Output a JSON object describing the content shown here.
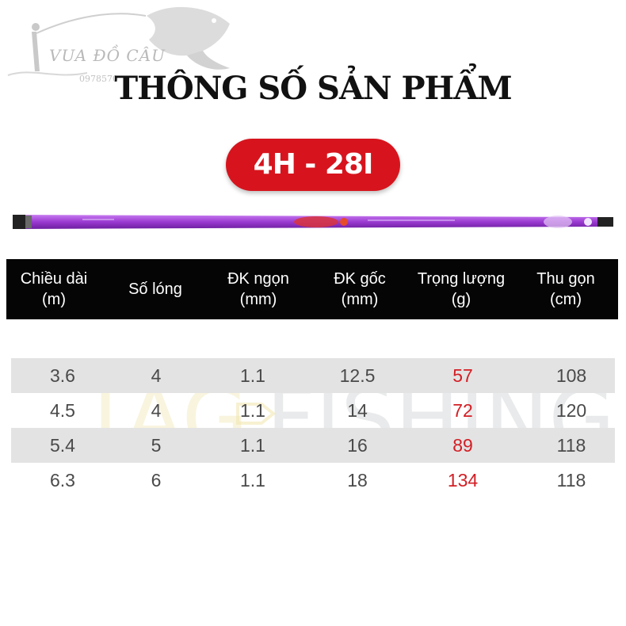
{
  "logo": {
    "name": "VUA ĐỒ CÂU",
    "phone": "0978570"
  },
  "title": "THÔNG SỐ SẢN PHẨM",
  "model_badge": "4H - 28I",
  "table": {
    "headers": [
      {
        "line1": "Chiều dài",
        "line2": "(m)"
      },
      {
        "line1": "Số lóng",
        "line2": ""
      },
      {
        "line1": "ĐK ngọn",
        "line2": "(mm)"
      },
      {
        "line1": "ĐK gốc",
        "line2": "(mm)"
      },
      {
        "line1": "Trọng lượng",
        "line2": "(g)"
      },
      {
        "line1": "Thu gọn",
        "line2": "(cm)"
      }
    ],
    "rows": [
      [
        "3.6",
        "4",
        "1.1",
        "12.5",
        "57",
        "108"
      ],
      [
        "4.5",
        "4",
        "1.1",
        "14",
        "72",
        "120"
      ],
      [
        "5.4",
        "5",
        "1.1",
        "16",
        "89",
        "118"
      ],
      [
        "6.3",
        "6",
        "1.1",
        "18",
        "134",
        "118"
      ]
    ]
  },
  "watermark": {
    "part1": "TAG",
    "part2": "FISHING"
  },
  "colors": {
    "accent_red": "#d7141d",
    "weight_red": "#d31e24",
    "header_bg": "#050505",
    "row_shade": "#e3e3e3",
    "rod_purple": "#9b3ad1"
  }
}
